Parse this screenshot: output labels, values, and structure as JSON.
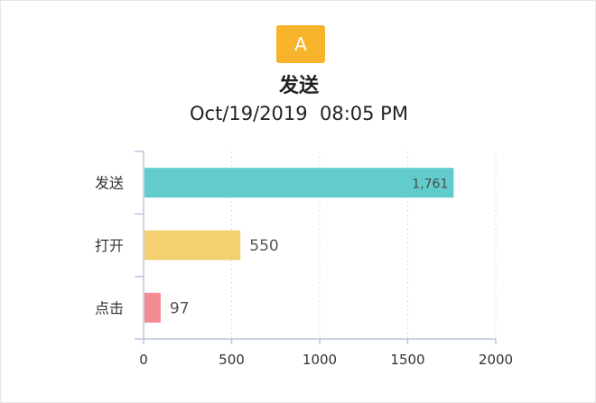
{
  "badge": {
    "label": "A",
    "color": "#f7b32b"
  },
  "header": {
    "title": "发送",
    "subtitle": "Oct/19/2019  08:05 PM"
  },
  "chart_data": {
    "type": "bar",
    "orientation": "horizontal",
    "categories": [
      "发送",
      "打开",
      "点击"
    ],
    "values": [
      1761,
      550,
      97
    ],
    "value_labels": [
      "1,761",
      "550",
      "97"
    ],
    "colors": [
      "#62cccc",
      "#f4d06f",
      "#f48b92"
    ],
    "xlim": [
      0,
      2000
    ],
    "xticks": [
      0,
      500,
      1000,
      1500,
      2000
    ],
    "grid": "vertical dotted",
    "legend": "none"
  }
}
